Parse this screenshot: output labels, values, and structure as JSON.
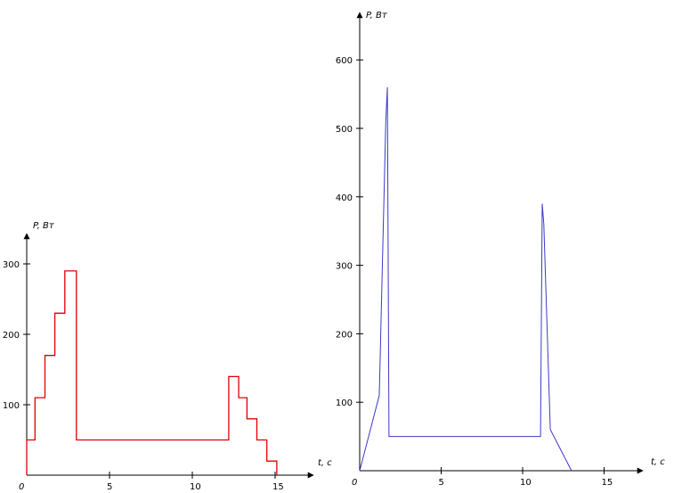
{
  "chart_data": [
    {
      "type": "line",
      "step": true,
      "xlabel": "t, c",
      "ylabel": "P, Вт",
      "xlim": [
        0,
        17
      ],
      "ylim": [
        0,
        330
      ],
      "x_ticks": [
        "0",
        "5",
        "10",
        "15"
      ],
      "y_ticks": [
        "100",
        "200",
        "300"
      ],
      "series": [
        {
          "color": "#e00000",
          "x": [
            0,
            0,
            0.5,
            0.5,
            1.1,
            1.1,
            1.7,
            1.7,
            2.3,
            2.3,
            3.0,
            3.0,
            12.2,
            12.2,
            12.8,
            12.8,
            13.3,
            13.3,
            13.9,
            13.9,
            14.5,
            14.5,
            15.1,
            15.1
          ],
          "y": [
            0,
            50,
            50,
            110,
            110,
            170,
            170,
            230,
            230,
            290,
            290,
            50,
            50,
            140,
            140,
            110,
            110,
            80,
            80,
            50,
            50,
            20,
            20,
            0
          ]
        }
      ]
    },
    {
      "type": "line",
      "xlabel": "t, c",
      "ylabel": "P, Вт",
      "xlim": [
        0,
        17
      ],
      "ylim": [
        0,
        640
      ],
      "x_ticks": [
        "0",
        "5",
        "10",
        "15"
      ],
      "y_ticks": [
        "100",
        "200",
        "300",
        "400",
        "500",
        "600"
      ],
      "series": [
        {
          "color": "#3a3ac8",
          "x": [
            0,
            1.2,
            1.6,
            1.7,
            1.8,
            11.1,
            11.2,
            11.3,
            11.7,
            13.0
          ],
          "y": [
            0,
            110,
            510,
            560,
            50,
            50,
            390,
            360,
            60,
            0
          ]
        }
      ]
    }
  ]
}
